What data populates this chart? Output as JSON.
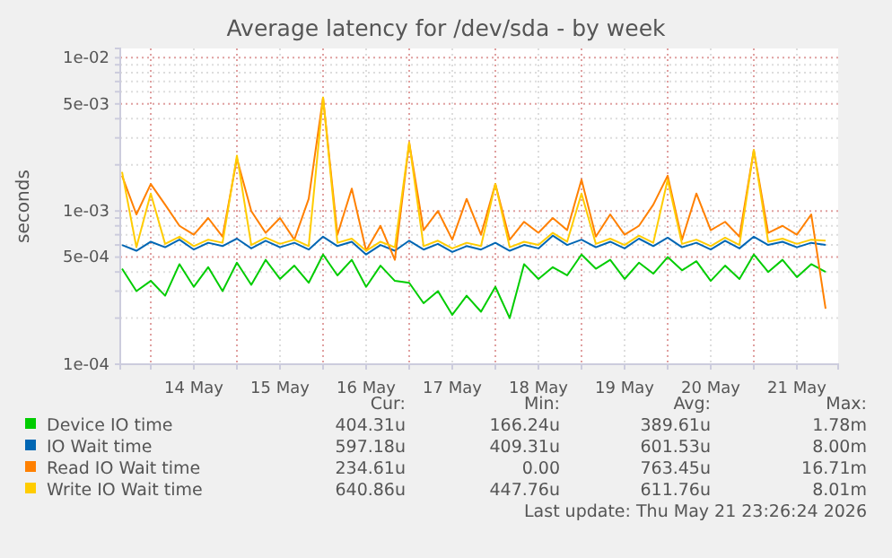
{
  "chart_data": {
    "type": "line",
    "title": "Average latency for /dev/sda - by week",
    "ylabel": "seconds",
    "log": "y",
    "grid": true,
    "legend": "bottom",
    "line_style": "solid",
    "marker": "none",
    "xlim": [
      "2026-05-13T15:30",
      "2026-05-21T23:30"
    ],
    "xticks": [
      {
        "value": "2026-05-14T00:00",
        "label": null
      },
      {
        "value": "2026-05-14T12:00",
        "label": "14 May"
      },
      {
        "value": "2026-05-15T00:00",
        "label": null
      },
      {
        "value": "2026-05-15T12:00",
        "label": "15 May"
      },
      {
        "value": "2026-05-16T00:00",
        "label": null
      },
      {
        "value": "2026-05-16T12:00",
        "label": "16 May"
      },
      {
        "value": "2026-05-17T00:00",
        "label": null
      },
      {
        "value": "2026-05-17T12:00",
        "label": "17 May"
      },
      {
        "value": "2026-05-18T00:00",
        "label": null
      },
      {
        "value": "2026-05-18T12:00",
        "label": "18 May"
      },
      {
        "value": "2026-05-19T00:00",
        "label": null
      },
      {
        "value": "2026-05-19T12:00",
        "label": "19 May"
      },
      {
        "value": "2026-05-20T00:00",
        "label": null
      },
      {
        "value": "2026-05-20T12:00",
        "label": "20 May"
      },
      {
        "value": "2026-05-21T00:00",
        "label": null
      },
      {
        "value": "2026-05-21T12:00",
        "label": "21 May"
      }
    ],
    "ylim": [
      0.0001,
      0.0115
    ],
    "yticks": [
      {
        "value": 0.0001,
        "label": "1e-04"
      },
      {
        "value": 0.0002,
        "label": null
      },
      {
        "value": 0.0003,
        "label": null
      },
      {
        "value": 0.0004,
        "label": null
      },
      {
        "value": 0.0005,
        "label": "5e-04"
      },
      {
        "value": 0.0006,
        "label": null
      },
      {
        "value": 0.0007,
        "label": null
      },
      {
        "value": 0.0008,
        "label": null
      },
      {
        "value": 0.0009,
        "label": null
      },
      {
        "value": 0.001,
        "label": "1e-03"
      },
      {
        "value": 0.002,
        "label": null
      },
      {
        "value": 0.003,
        "label": null
      },
      {
        "value": 0.004,
        "label": null
      },
      {
        "value": 0.005,
        "label": "5e-03"
      },
      {
        "value": 0.006,
        "label": null
      },
      {
        "value": 0.007,
        "label": null
      },
      {
        "value": 0.008,
        "label": null
      },
      {
        "value": 0.009,
        "label": null
      },
      {
        "value": 0.01,
        "label": "1e-02"
      }
    ],
    "x": [
      "2026-05-13T16:00",
      "2026-05-13T20:00",
      "2026-05-14T00:00",
      "2026-05-14T04:00",
      "2026-05-14T08:00",
      "2026-05-14T12:00",
      "2026-05-14T16:00",
      "2026-05-14T20:00",
      "2026-05-15T00:00",
      "2026-05-15T04:00",
      "2026-05-15T08:00",
      "2026-05-15T12:00",
      "2026-05-15T16:00",
      "2026-05-15T20:00",
      "2026-05-16T00:00",
      "2026-05-16T04:00",
      "2026-05-16T08:00",
      "2026-05-16T12:00",
      "2026-05-16T16:00",
      "2026-05-16T20:00",
      "2026-05-17T00:00",
      "2026-05-17T04:00",
      "2026-05-17T08:00",
      "2026-05-17T12:00",
      "2026-05-17T16:00",
      "2026-05-17T20:00",
      "2026-05-18T00:00",
      "2026-05-18T04:00",
      "2026-05-18T08:00",
      "2026-05-18T12:00",
      "2026-05-18T16:00",
      "2026-05-18T20:00",
      "2026-05-19T00:00",
      "2026-05-19T04:00",
      "2026-05-19T08:00",
      "2026-05-19T12:00",
      "2026-05-19T16:00",
      "2026-05-19T20:00",
      "2026-05-20T00:00",
      "2026-05-20T04:00",
      "2026-05-20T08:00",
      "2026-05-20T12:00",
      "2026-05-20T16:00",
      "2026-05-20T20:00",
      "2026-05-21T00:00",
      "2026-05-21T04:00",
      "2026-05-21T08:00",
      "2026-05-21T12:00",
      "2026-05-21T16:00",
      "2026-05-21T20:00"
    ],
    "series": [
      {
        "name": "Device IO time",
        "color": "#00cc00",
        "values": [
          0.00042,
          0.0003,
          0.00035,
          0.00028,
          0.00045,
          0.00032,
          0.00043,
          0.0003,
          0.00046,
          0.00033,
          0.00048,
          0.00036,
          0.00044,
          0.00034,
          0.00052,
          0.00038,
          0.00048,
          0.00032,
          0.00044,
          0.00035,
          0.00034,
          0.00025,
          0.0003,
          0.00021,
          0.00028,
          0.00022,
          0.00032,
          0.0002,
          0.00045,
          0.00036,
          0.00043,
          0.00038,
          0.00052,
          0.00042,
          0.00048,
          0.00036,
          0.00046,
          0.00039,
          0.0005,
          0.00041,
          0.00047,
          0.00035,
          0.00044,
          0.00036,
          0.00052,
          0.0004,
          0.00048,
          0.00037,
          0.00045,
          0.0004
        ]
      },
      {
        "name": "IO Wait time",
        "color": "#0066b3",
        "values": [
          0.0006,
          0.00055,
          0.00063,
          0.00058,
          0.00065,
          0.00056,
          0.00062,
          0.00059,
          0.00066,
          0.00057,
          0.00064,
          0.00058,
          0.00062,
          0.00056,
          0.00068,
          0.00059,
          0.00063,
          0.00052,
          0.0006,
          0.00055,
          0.00064,
          0.00056,
          0.00061,
          0.00054,
          0.00059,
          0.00056,
          0.00062,
          0.00055,
          0.0006,
          0.00057,
          0.00069,
          0.0006,
          0.00065,
          0.00058,
          0.00063,
          0.00057,
          0.00066,
          0.00059,
          0.00067,
          0.00058,
          0.00062,
          0.00056,
          0.00064,
          0.00057,
          0.00068,
          0.0006,
          0.00063,
          0.00058,
          0.00062,
          0.0006
        ]
      },
      {
        "name": "Read IO Wait time",
        "color": "#ff8000",
        "values": [
          0.0017,
          0.00095,
          0.0015,
          0.0011,
          0.0008,
          0.0007,
          0.0009,
          0.00068,
          0.0022,
          0.001,
          0.00072,
          0.0009,
          0.00065,
          0.0012,
          0.0055,
          0.0007,
          0.0014,
          0.00055,
          0.0008,
          0.00048,
          0.0028,
          0.00075,
          0.001,
          0.00065,
          0.0012,
          0.0007,
          0.0015,
          0.00065,
          0.00085,
          0.00072,
          0.0009,
          0.00075,
          0.0016,
          0.00068,
          0.00095,
          0.0007,
          0.0008,
          0.0011,
          0.0017,
          0.00065,
          0.0013,
          0.00075,
          0.00085,
          0.00068,
          0.0025,
          0.00072,
          0.0008,
          0.0007,
          0.00095,
          0.00023
        ]
      },
      {
        "name": "Write IO Wait time",
        "color": "#ffcc00",
        "values": [
          0.0018,
          0.00058,
          0.0013,
          0.00061,
          0.00068,
          0.00059,
          0.00065,
          0.00062,
          0.0023,
          0.0006,
          0.00067,
          0.00061,
          0.00065,
          0.00059,
          0.0055,
          0.00062,
          0.00066,
          0.00055,
          0.00063,
          0.00058,
          0.0028,
          0.00059,
          0.00064,
          0.00057,
          0.00062,
          0.00059,
          0.0015,
          0.00058,
          0.00063,
          0.0006,
          0.00072,
          0.00063,
          0.0013,
          0.00061,
          0.00066,
          0.0006,
          0.00069,
          0.00062,
          0.0016,
          0.00061,
          0.00065,
          0.00059,
          0.00067,
          0.0006,
          0.0025,
          0.00063,
          0.00066,
          0.00061,
          0.00065,
          0.00064
        ]
      }
    ],
    "annotations": [
      "Cur:",
      "Min:",
      "Avg:",
      "Max:",
      "404.31u",
      "166.24u",
      "389.61u",
      "1.78m",
      "597.18u",
      "409.31u",
      "601.53u",
      "8.00m",
      "234.61u",
      "0.00",
      "763.45u",
      "16.71m",
      "640.86u",
      "447.76u",
      "611.76u",
      "8.01m",
      "Last update: Thu May 21 23:26:24 2026"
    ]
  }
}
